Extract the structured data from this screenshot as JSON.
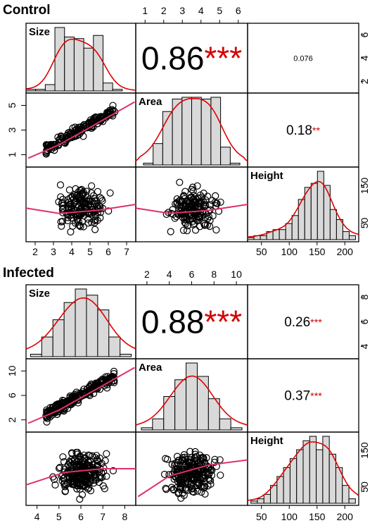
{
  "chart_data": [
    {
      "type": "scatter-matrix",
      "title": "Control",
      "variables": [
        "Size",
        "Area",
        "Height"
      ],
      "ticks": {
        "size_bottom": [
          "2",
          "3",
          "4",
          "5",
          "6",
          "7"
        ],
        "area_top": [
          "1",
          "2",
          "3",
          "4",
          "5",
          "6"
        ],
        "size_right": [
          "2",
          "4",
          "6"
        ],
        "area_left": [
          "1",
          "3",
          "5"
        ],
        "height_right": [
          "50",
          "150"
        ],
        "height_bottom": [
          "50",
          "100",
          "150",
          "200"
        ]
      },
      "correlations": [
        {
          "pair": "Size-Area",
          "value": "0.86",
          "stars": "***"
        },
        {
          "pair": "Size-Height",
          "value": "0.076",
          "stars": ""
        },
        {
          "pair": "Area-Height",
          "value": "0.18",
          "stars": "**"
        }
      ],
      "histograms": {
        "Size": {
          "bins": [
            1.5,
            2,
            2.5,
            3,
            3.5,
            4,
            4.5,
            5,
            5.5,
            6,
            6.5,
            7
          ],
          "counts": [
            1,
            1,
            4,
            40,
            34,
            33,
            27,
            35,
            5,
            1,
            0
          ]
        },
        "Area": {
          "bins": [
            1,
            1.5,
            2,
            2.5,
            3,
            3.5,
            4,
            4.5,
            5,
            5.5,
            6
          ],
          "counts": [
            1,
            12,
            30,
            37,
            38,
            38,
            37,
            38,
            10,
            1
          ]
        },
        "Height": {
          "bins": [
            40,
            50,
            60,
            70,
            80,
            90,
            100,
            110,
            120,
            130,
            140,
            150,
            160,
            170,
            180,
            190,
            200,
            210
          ],
          "counts": [
            1,
            2,
            2,
            4,
            5,
            5,
            8,
            12,
            20,
            26,
            28,
            34,
            27,
            15,
            10,
            4,
            2
          ]
        }
      }
    },
    {
      "type": "scatter-matrix",
      "title": "Infected",
      "variables": [
        "Size",
        "Area",
        "Height"
      ],
      "ticks": {
        "size_bottom": [
          "4",
          "5",
          "6",
          "7",
          "8"
        ],
        "area_top": [
          "2",
          "4",
          "6",
          "8",
          "10"
        ],
        "size_right": [
          "4",
          "6",
          "8"
        ],
        "area_left": [
          "2",
          "6",
          "10"
        ],
        "height_right": [
          "50",
          "150"
        ],
        "height_bottom": [
          "50",
          "100",
          "150",
          "200"
        ]
      },
      "correlations": [
        {
          "pair": "Size-Area",
          "value": "0.88",
          "stars": "***"
        },
        {
          "pair": "Size-Height",
          "value": "0.26",
          "stars": "***"
        },
        {
          "pair": "Area-Height",
          "value": "0.37",
          "stars": "***"
        }
      ],
      "histograms": {
        "Size": {
          "bins": [
            4,
            4.5,
            5,
            5.5,
            6,
            6.5,
            7,
            7.5,
            8,
            8.5
          ],
          "counts": [
            2,
            16,
            30,
            44,
            55,
            50,
            38,
            16,
            2
          ]
        },
        "Area": {
          "bins": [
            2,
            3,
            4,
            5,
            6,
            7,
            8,
            9,
            10,
            11
          ],
          "counts": [
            2,
            10,
            30,
            45,
            60,
            48,
            28,
            10,
            2
          ]
        },
        "Height": {
          "bins": [
            50,
            60,
            70,
            80,
            90,
            100,
            110,
            120,
            130,
            140,
            150,
            160,
            170,
            180,
            190,
            200,
            210
          ],
          "counts": [
            1,
            2,
            4,
            8,
            12,
            16,
            20,
            24,
            28,
            30,
            24,
            30,
            22,
            16,
            8,
            2
          ]
        }
      }
    }
  ]
}
